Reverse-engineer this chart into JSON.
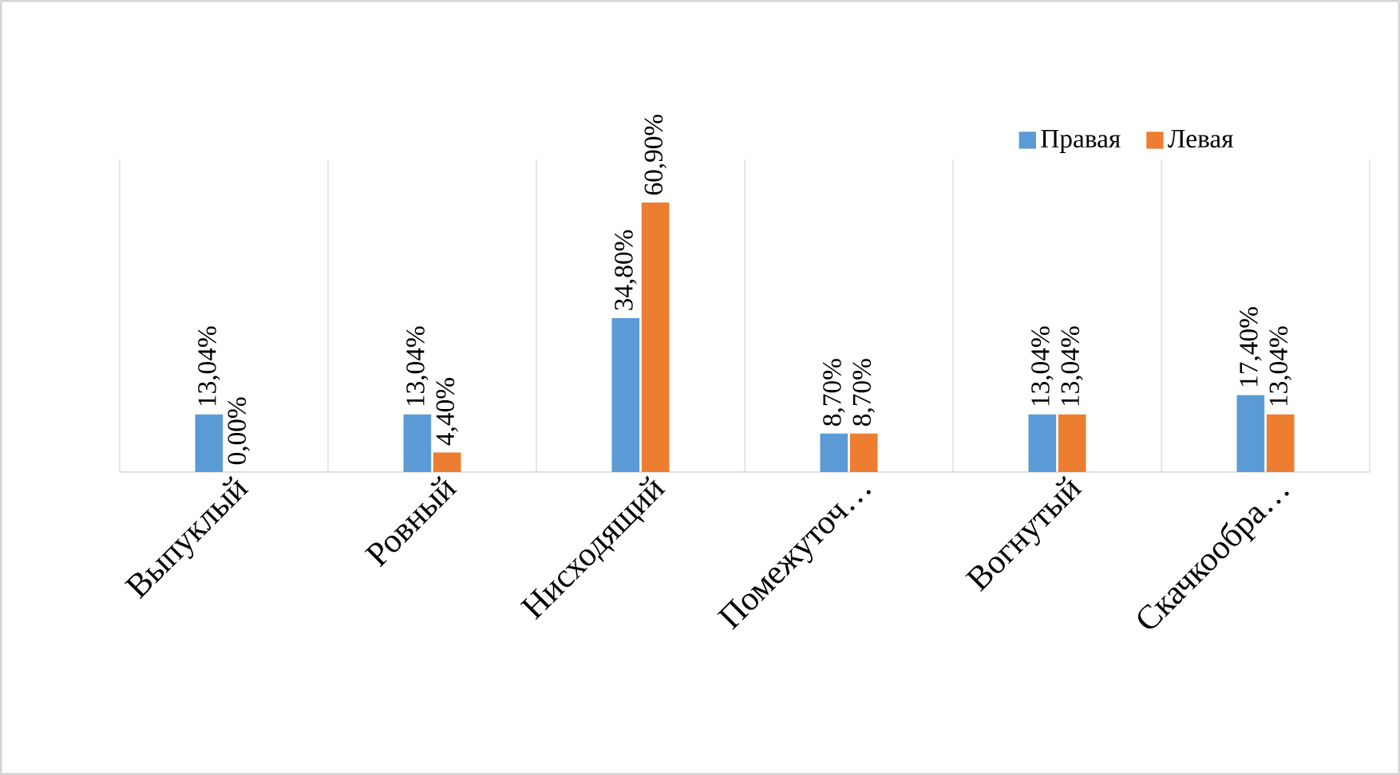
{
  "chart_data": {
    "type": "bar",
    "categories": [
      "Выпуклый",
      "Ровный",
      "Нисходящий",
      "Помежуточ…",
      "Вогнутый",
      "Скачкообра…"
    ],
    "series": [
      {
        "name": "Правая",
        "color": "#5b9bd5",
        "values": [
          13.04,
          13.04,
          34.8,
          8.7,
          13.04,
          17.4
        ],
        "value_labels": [
          "13,04%",
          "13,04%",
          "34,80%",
          "8,70%",
          "13,04%",
          "17,40%"
        ]
      },
      {
        "name": "Левая",
        "color": "#ed7d31",
        "values": [
          0.0,
          4.4,
          60.9,
          8.7,
          13.04,
          13.04
        ],
        "value_labels": [
          "0,00%",
          "4,40%",
          "60,90%",
          "8,70%",
          "13,04%",
          "13,04%"
        ]
      }
    ],
    "grid": "x",
    "legend": "top right"
  }
}
